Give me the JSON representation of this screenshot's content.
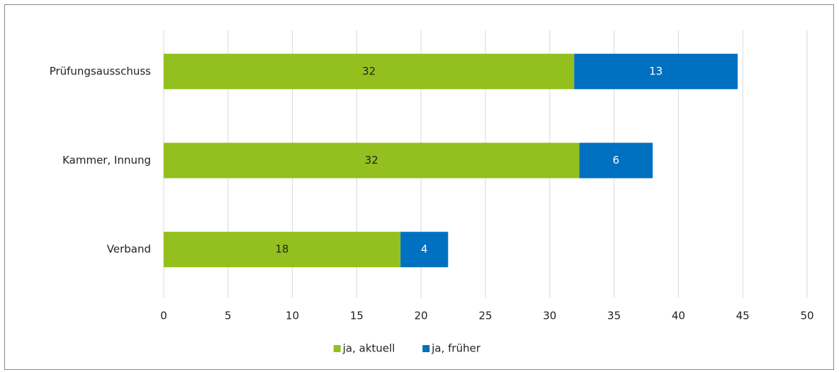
{
  "chart_data": {
    "type": "bar",
    "orientation": "horizontal",
    "stacked": true,
    "categories": [
      "Prüfungsausschuss",
      "Kammer, Innung",
      "Verband"
    ],
    "series": [
      {
        "name": "ja, aktuell",
        "color": "#93c01f",
        "values": [
          31.9,
          32.3,
          18.4
        ],
        "value_labels": [
          "32",
          "32",
          "18"
        ]
      },
      {
        "name": "ja, früher",
        "color": "#0070c0",
        "values": [
          12.7,
          5.7,
          3.7
        ],
        "value_labels": [
          "13",
          "6",
          "4"
        ]
      }
    ],
    "xlim": [
      0,
      50
    ],
    "xticks": [
      0,
      5,
      10,
      15,
      20,
      25,
      30,
      35,
      40,
      45,
      50
    ],
    "grid": true,
    "legend": "bottom"
  }
}
